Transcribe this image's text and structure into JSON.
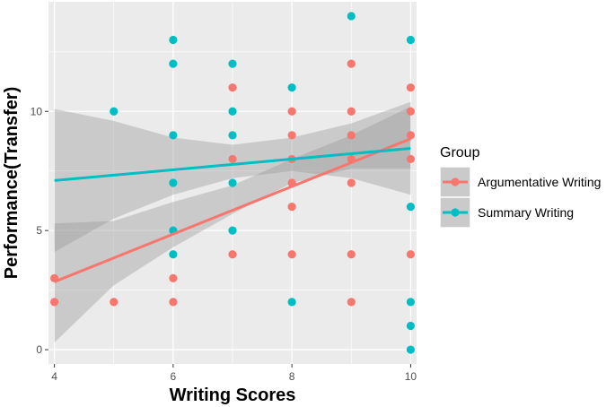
{
  "chart_data": {
    "type": "scatter",
    "xlabel": "Writing Scores",
    "ylabel": "Performance(Transfer)",
    "xlim": [
      3.9,
      10.1
    ],
    "ylim": [
      -0.6,
      14.6
    ],
    "x_ticks": [
      4,
      6,
      8,
      10
    ],
    "y_ticks": [
      0,
      5,
      10
    ],
    "grid": true,
    "legend_position": "right",
    "legend_title": "Group",
    "series": [
      {
        "name": "Argumentative Writing",
        "color": "#F8766D",
        "points": [
          [
            4,
            3
          ],
          [
            4,
            2
          ],
          [
            5,
            2
          ],
          [
            6,
            3
          ],
          [
            6,
            2
          ],
          [
            7,
            11
          ],
          [
            7,
            8
          ],
          [
            7,
            4
          ],
          [
            8,
            10
          ],
          [
            8,
            9
          ],
          [
            8,
            8
          ],
          [
            8,
            7
          ],
          [
            8,
            6
          ],
          [
            8,
            4
          ],
          [
            9,
            12
          ],
          [
            9,
            10
          ],
          [
            9,
            9
          ],
          [
            9,
            8
          ],
          [
            9,
            7
          ],
          [
            9,
            4
          ],
          [
            9,
            2
          ],
          [
            10,
            11
          ],
          [
            10,
            10
          ],
          [
            10,
            9
          ],
          [
            10,
            8
          ],
          [
            10,
            4
          ]
        ],
        "fit": {
          "x": [
            4,
            10
          ],
          "y": [
            2.85,
            8.85
          ]
        },
        "band": {
          "x": [
            4,
            5,
            6,
            7,
            8,
            9,
            10
          ],
          "lower": [
            0.3,
            2.7,
            4.3,
            5.7,
            7.0,
            7.6,
            7.6
          ],
          "upper": [
            5.3,
            5.4,
            6.2,
            6.9,
            8.0,
            9.0,
            10.2
          ]
        }
      },
      {
        "name": "Summary Writing",
        "color": "#00BFC4",
        "points": [
          [
            5,
            10
          ],
          [
            6,
            13
          ],
          [
            6,
            12
          ],
          [
            6,
            9
          ],
          [
            6,
            7
          ],
          [
            6,
            5
          ],
          [
            6,
            4
          ],
          [
            7,
            12
          ],
          [
            7,
            10
          ],
          [
            7,
            9
          ],
          [
            7,
            7
          ],
          [
            7,
            5
          ],
          [
            8,
            11
          ],
          [
            8,
            2
          ],
          [
            9,
            14
          ],
          [
            10,
            13
          ],
          [
            10,
            6
          ],
          [
            10,
            2
          ],
          [
            10,
            1
          ],
          [
            10,
            0
          ]
        ],
        "fit": {
          "x": [
            4,
            10
          ],
          "y": [
            7.1,
            8.45
          ]
        },
        "band": {
          "x": [
            4,
            5,
            6,
            7,
            8,
            9,
            10
          ],
          "lower": [
            4.1,
            5.5,
            6.5,
            7.2,
            7.5,
            7.2,
            6.5
          ],
          "upper": [
            10.1,
            9.6,
            8.9,
            8.6,
            8.9,
            9.5,
            10.4
          ]
        }
      }
    ]
  }
}
